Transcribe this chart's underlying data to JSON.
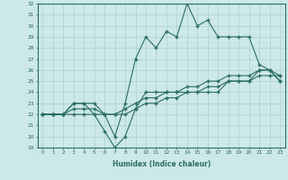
{
  "xlabel": "Humidex (Indice chaleur)",
  "x": [
    0,
    1,
    2,
    3,
    4,
    5,
    6,
    7,
    8,
    9,
    10,
    11,
    12,
    13,
    14,
    15,
    16,
    17,
    18,
    19,
    20,
    21,
    22,
    23
  ],
  "line1": [
    22,
    22,
    22,
    23,
    23,
    23,
    22,
    20,
    23,
    27,
    29,
    28,
    29.5,
    29,
    32,
    30,
    30.5,
    29,
    29,
    29,
    29,
    26.5,
    26,
    25
  ],
  "line2": [
    22,
    22,
    22,
    23,
    23,
    22,
    20.5,
    19,
    20,
    22.5,
    24,
    24,
    24,
    24,
    24,
    24,
    24,
    24,
    25,
    25,
    25,
    26,
    26,
    25
  ],
  "line3": [
    22,
    22,
    22,
    22.5,
    22.5,
    22.5,
    22,
    22,
    22.5,
    23,
    23.5,
    23.5,
    24,
    24,
    24.5,
    24.5,
    25,
    25,
    25.5,
    25.5,
    25.5,
    26,
    26,
    25.5
  ],
  "line4": [
    22,
    22,
    22,
    22,
    22,
    22,
    22,
    22,
    22,
    22.5,
    23,
    23,
    23.5,
    23.5,
    24,
    24,
    24.5,
    24.5,
    25,
    25,
    25,
    25.5,
    25.5,
    25.5
  ],
  "line_color": "#2d6e5e",
  "bg_color": "#cce8e8",
  "grid_color": "#aed0d0",
  "ylim": [
    19,
    32
  ],
  "xlim": [
    -0.5,
    23.5
  ],
  "marker": "+"
}
